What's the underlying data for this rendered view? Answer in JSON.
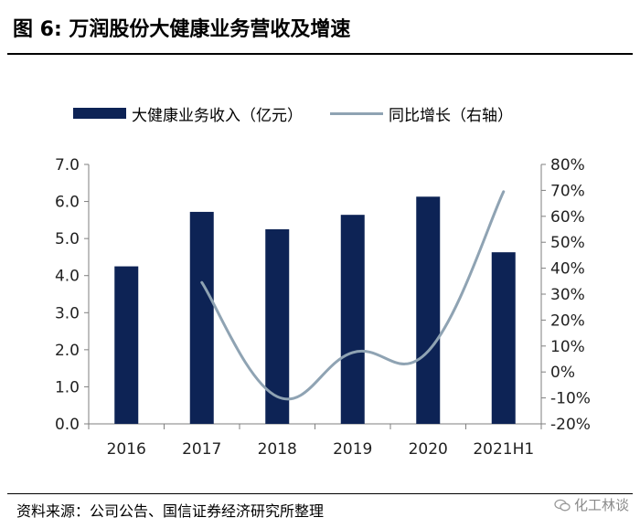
{
  "header": {
    "title": "图 6:  万润股份大健康业务营收及增速"
  },
  "legend": {
    "bar_label": "大健康业务收入（亿元）",
    "line_label": "同比增长（右轴）"
  },
  "footer": {
    "source": "资料来源：公司公告、国信证券经济研究所整理",
    "watermark": "化工林谈"
  },
  "colors": {
    "bar": "#0d2355",
    "line": "#8fa3b3",
    "axis": "#7f7f7f"
  },
  "chart_data": {
    "type": "bar",
    "categories": [
      "2016",
      "2017",
      "2018",
      "2019",
      "2020",
      "2021H1"
    ],
    "series": [
      {
        "name": "大健康业务收入（亿元）",
        "type": "bar",
        "axis": "left",
        "values": [
          4.25,
          5.72,
          5.25,
          5.64,
          6.13,
          4.63
        ]
      },
      {
        "name": "同比增长（右轴）",
        "type": "line",
        "axis": "right",
        "smooth": true,
        "values": [
          null,
          34.5,
          -9.5,
          7.5,
          8.0,
          69.5
        ]
      }
    ],
    "ylim": [
      0,
      7
    ],
    "yticks": [
      "0.0",
      "1.0",
      "2.0",
      "3.0",
      "4.0",
      "5.0",
      "6.0",
      "7.0"
    ],
    "y2lim": [
      -20,
      80
    ],
    "y2ticks": [
      "-20%",
      "-10%",
      "0%",
      "10%",
      "20%",
      "30%",
      "40%",
      "50%",
      "60%",
      "70%",
      "80%"
    ],
    "legend_position": "top",
    "grid": false
  }
}
